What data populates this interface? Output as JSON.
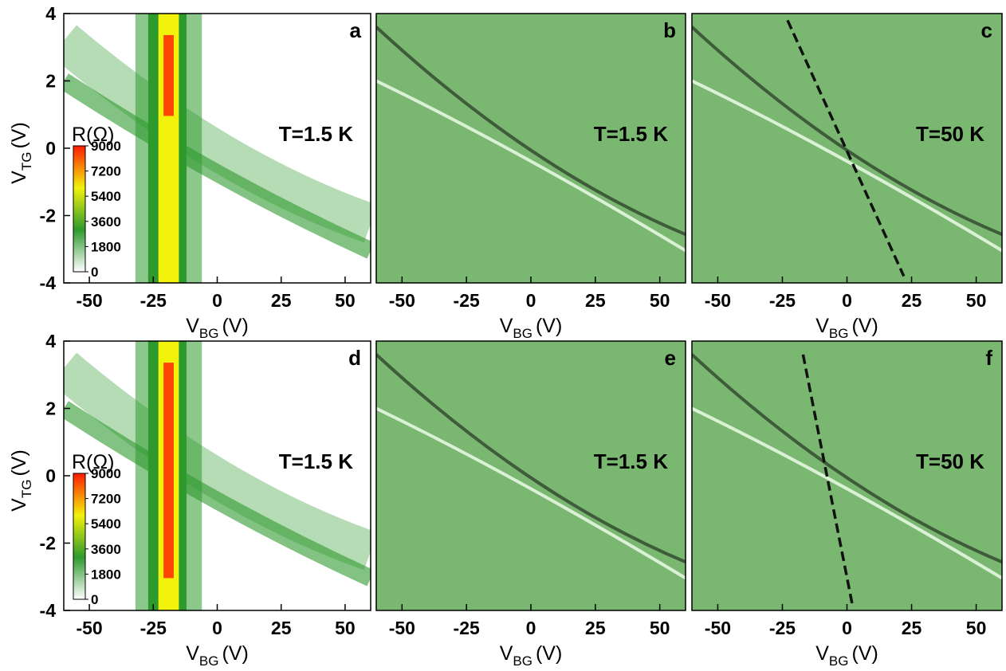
{
  "axis_labels": {
    "x": [
      "V",
      "BG",
      "(V)"
    ],
    "y": [
      "V",
      "TG",
      "(V)"
    ]
  },
  "chart_data": [
    {
      "type": "heatmap",
      "panel": "a",
      "annotation": "T=1.5 K",
      "annotation_color": "#000000",
      "background": "#ffffff",
      "xlim": [
        -60,
        60
      ],
      "ylim": [
        -4,
        4
      ],
      "xticks": [
        -50,
        -25,
        0,
        25,
        50
      ],
      "yticks": [
        4,
        2,
        0,
        -2,
        -4
      ],
      "colorbar": {
        "label": "R(Ω)",
        "lim": [
          0,
          9000
        ],
        "ticks": [
          9000,
          7200,
          5400,
          3600,
          1800,
          0
        ],
        "colors": [
          "#ffffff",
          "#2e9a2e",
          "#f2f20a",
          "#ff1a00"
        ]
      }
    },
    {
      "type": "heatmap",
      "panel": "b",
      "annotation": "T=1.5 K",
      "annotation_color": "#ffffff",
      "background": "#7ab871",
      "xlim": [
        -60,
        60
      ],
      "ylim": [
        -4,
        4
      ],
      "xticks": [
        -50,
        -25,
        0,
        25,
        50
      ]
    },
    {
      "type": "heatmap",
      "panel": "c",
      "annotation": "T=50 K",
      "annotation_color": "#ffffff",
      "background": "#7ab871",
      "xlim": [
        -60,
        60
      ],
      "ylim": [
        -4,
        4
      ],
      "xticks": [
        -50,
        -25,
        0,
        25,
        50
      ],
      "fit_line": {
        "x": [
          -23,
          22
        ],
        "y": [
          3.8,
          -3.8
        ]
      }
    },
    {
      "type": "heatmap",
      "panel": "d",
      "annotation": "T=1.5 K",
      "annotation_color": "#000000",
      "background": "#ffffff",
      "xlim": [
        -60,
        60
      ],
      "ylim": [
        -4,
        4
      ],
      "xticks": [
        -50,
        -25,
        0,
        25,
        50
      ],
      "yticks": [
        4,
        2,
        0,
        -2,
        -4
      ],
      "colorbar": {
        "label": "R(Ω)",
        "lim": [
          0,
          9000
        ],
        "ticks": [
          9000,
          7200,
          5400,
          3600,
          1800,
          0
        ],
        "colors": [
          "#ffffff",
          "#2e9a2e",
          "#f2f20a",
          "#ff1a00"
        ]
      }
    },
    {
      "type": "heatmap",
      "panel": "e",
      "annotation": "T=1.5 K",
      "annotation_color": "#ffffff",
      "background": "#7ab871",
      "xlim": [
        -60,
        60
      ],
      "ylim": [
        -4,
        4
      ],
      "xticks": [
        -50,
        -25,
        0,
        25,
        50
      ]
    },
    {
      "type": "heatmap",
      "panel": "f",
      "annotation": "T=50 K",
      "annotation_color": "#ffffff",
      "background": "#7ab871",
      "xlim": [
        -60,
        60
      ],
      "ylim": [
        -4,
        4
      ],
      "xticks": [
        -50,
        -25,
        0,
        25,
        50
      ],
      "fit_line": {
        "x": [
          -17,
          2
        ],
        "y": [
          3.6,
          -3.8
        ]
      }
    }
  ]
}
